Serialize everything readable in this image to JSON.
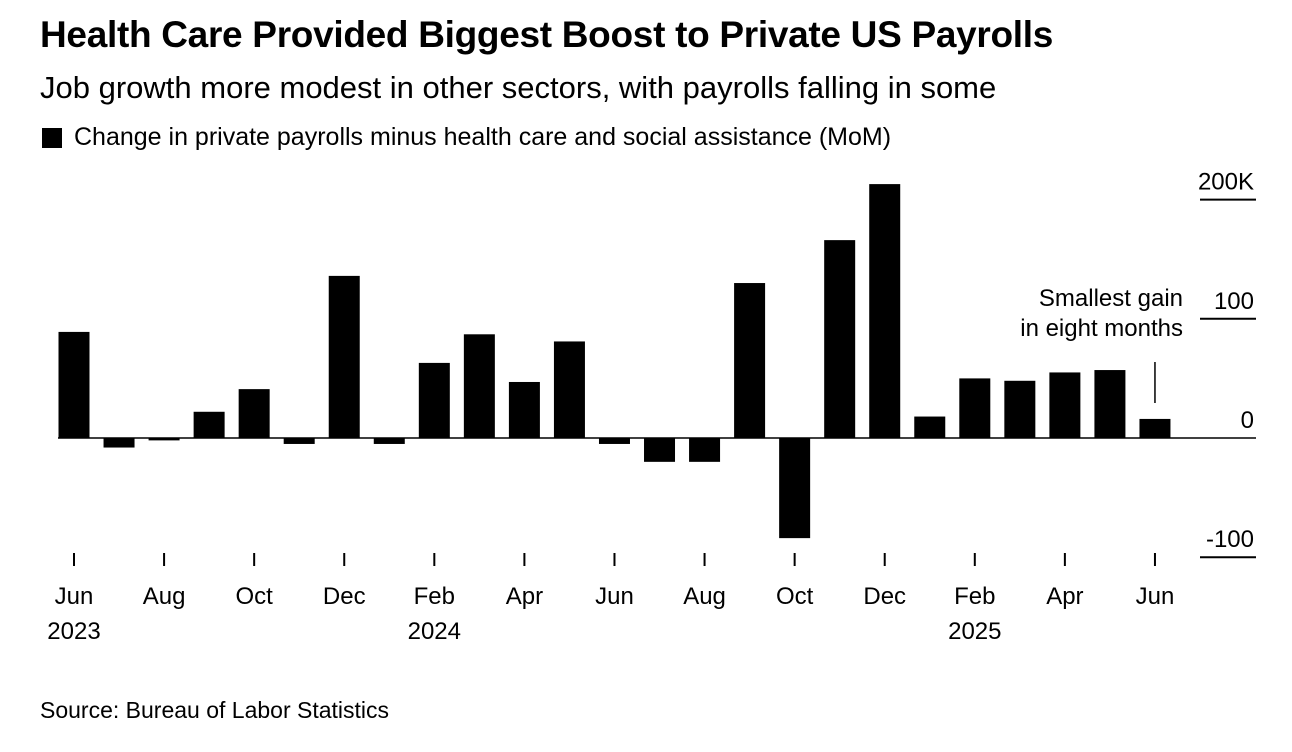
{
  "title": "Health Care Provided Biggest Boost to Private US Payrolls",
  "subtitle": "Job growth more modest in other sectors, with payrolls falling in some",
  "legend": {
    "label": "Change in private payrolls minus health care and social assistance (MoM)",
    "color": "#000000"
  },
  "source": "Source: Bureau of Labor Statistics",
  "chart_data": {
    "type": "bar",
    "title": "Health Care Provided Biggest Boost to Private US Payrolls",
    "subtitle": "Job growth more modest in other sectors, with payrolls falling in some",
    "series": [
      {
        "name": "Change in private payrolls minus health care and social assistance (MoM)",
        "color": "#000000",
        "values": [
          89,
          -8,
          -2,
          22,
          41,
          -5,
          136,
          -5,
          63,
          87,
          47,
          81,
          -5,
          -20,
          -20,
          130,
          -84,
          166,
          213,
          18,
          50,
          48,
          55,
          57,
          16
        ]
      }
    ],
    "categories": [
      "Jun 2023",
      "Jul 2023",
      "Aug 2023",
      "Sep 2023",
      "Oct 2023",
      "Nov 2023",
      "Dec 2023",
      "Jan 2024",
      "Feb 2024",
      "Mar 2024",
      "Apr 2024",
      "May 2024",
      "Jun 2024",
      "Jul 2024",
      "Aug 2024",
      "Sep 2024",
      "Oct 2024",
      "Nov 2024",
      "Dec 2024",
      "Jan 2025",
      "Feb 2025",
      "Mar 2025",
      "Apr 2025",
      "May 2025",
      "Jun 2025"
    ],
    "x_tick_labels": [
      {
        "index": 0,
        "month": "Jun",
        "year": "2023"
      },
      {
        "index": 2,
        "month": "Aug",
        "year": ""
      },
      {
        "index": 4,
        "month": "Oct",
        "year": ""
      },
      {
        "index": 6,
        "month": "Dec",
        "year": ""
      },
      {
        "index": 8,
        "month": "Feb",
        "year": "2024"
      },
      {
        "index": 10,
        "month": "Apr",
        "year": ""
      },
      {
        "index": 12,
        "month": "Jun",
        "year": ""
      },
      {
        "index": 14,
        "month": "Aug",
        "year": ""
      },
      {
        "index": 16,
        "month": "Oct",
        "year": ""
      },
      {
        "index": 18,
        "month": "Dec",
        "year": ""
      },
      {
        "index": 20,
        "month": "Feb",
        "year": "2025"
      },
      {
        "index": 22,
        "month": "Apr",
        "year": ""
      },
      {
        "index": 24,
        "month": "Jun",
        "year": ""
      }
    ],
    "y_ticks": [
      {
        "value": 200,
        "label": "200K"
      },
      {
        "value": 100,
        "label": "100"
      },
      {
        "value": 0,
        "label": "0"
      },
      {
        "value": -100,
        "label": "-100"
      }
    ],
    "ylim": [
      -100,
      200
    ],
    "xlabel": "",
    "ylabel": "",
    "grid": false,
    "legend_position": "top-left",
    "annotation": {
      "lines": [
        "Smallest gain",
        "in eight months"
      ],
      "target_index": 24
    }
  }
}
